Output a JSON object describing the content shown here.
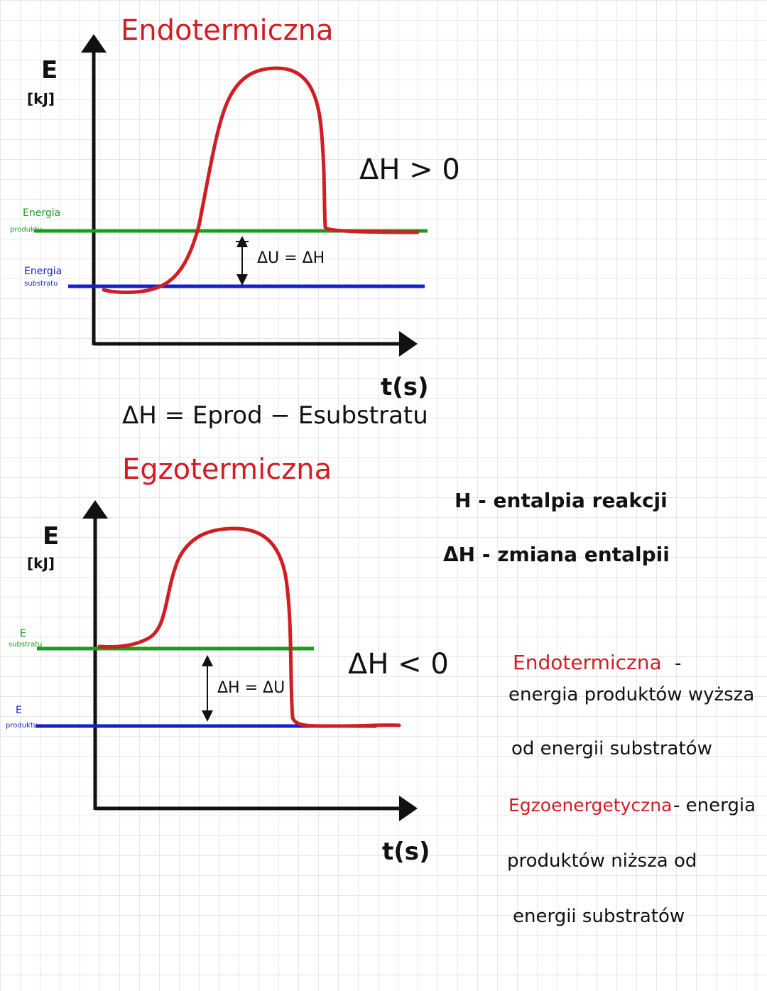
{
  "diagram1": {
    "title": "Endotermiczna",
    "y_label": "E",
    "y_unit": "[kJ]",
    "x_label": "t(s)",
    "level_top_label": "Energia",
    "level_top_sub": "produktu",
    "level_bottom_label": "Energia",
    "level_bottom_sub": "substratu",
    "gap_label": "ΔU = ΔH",
    "dh_label": "ΔH > 0"
  },
  "formula": "ΔH = Eprod − Esubstratu",
  "diagram2": {
    "title": "Egzotermiczna",
    "y_label": "E",
    "y_unit": "[kJ]",
    "x_label": "t(s)",
    "level_top_label": "E",
    "level_top_sub": "substratu",
    "level_bottom_label": "E",
    "level_bottom_sub": "produktu",
    "gap_label": "ΔH = ΔU",
    "dh_label": "ΔH < 0"
  },
  "notes": {
    "line1": "H - entalpia reakcji",
    "line2": "ΔH - zmiana entalpii"
  },
  "definitions": {
    "endo_term": "Endotermiczna",
    "endo_dash": "-",
    "endo_line1": "energia produktów wyższa",
    "endo_line2": "od energii substratów",
    "egzo_term": "Egzoenergetyczna",
    "egzo_rest": "- energia",
    "egzo_line2": "produktów niższa od",
    "egzo_line3": "energii substratów"
  },
  "colors": {
    "curve": "#d01e24",
    "product_level": "#1e9a1e",
    "substrate_level": "#1522c8",
    "axis": "#111111"
  }
}
